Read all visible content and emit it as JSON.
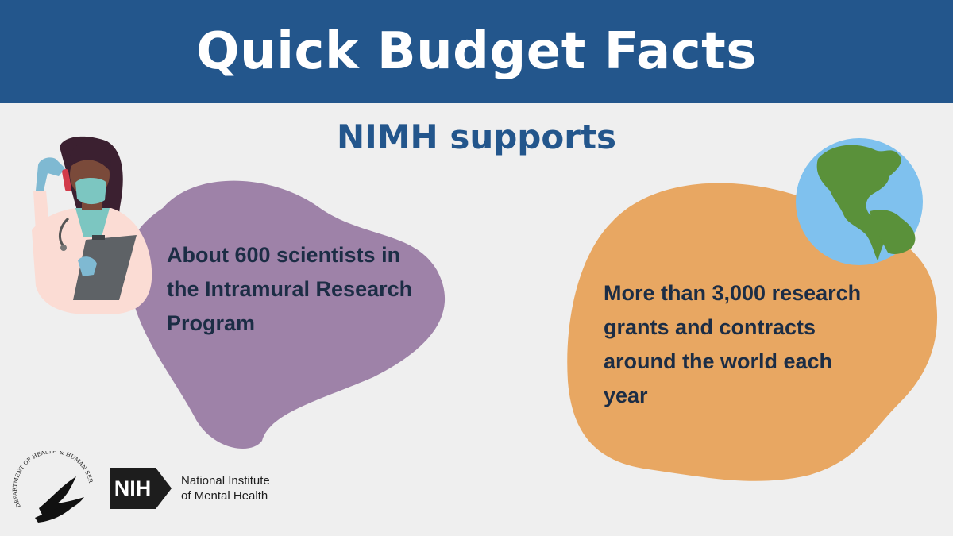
{
  "header": {
    "title": "Quick Budget Facts"
  },
  "subtitle": {
    "strong": "NIMH",
    "rest": "supports"
  },
  "facts": {
    "left": "About 600 scientists in the Intramural Research Program",
    "right": "More than 3,000 research grants and contracts around the world each year"
  },
  "logos": {
    "hhs_seal_text": "DEPARTMENT OF HEALTH & HUMAN SERVICES · USA",
    "nih_abbr": "NIH",
    "nih_line1": "National Institute",
    "nih_line2": "of Mental Health"
  },
  "colors": {
    "header_bg": "#23568c",
    "title_text": "#23568c",
    "purple_blob": "#9e82a8",
    "orange_blob": "#e8a762",
    "fact_text": "#1c2d45",
    "globe_ocean": "#7fc1ee",
    "globe_land": "#5a913a"
  },
  "icons": [
    "scientist-illustration",
    "globe-icon",
    "hhs-seal-icon",
    "nih-logo"
  ]
}
